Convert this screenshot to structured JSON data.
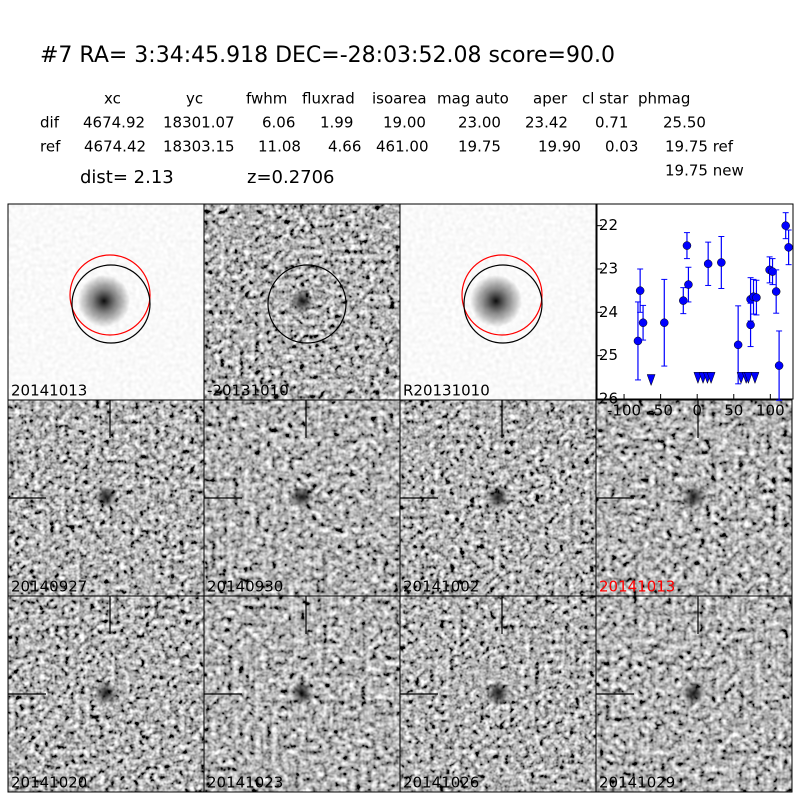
{
  "header": {
    "title": "#7   RA= 3:34:45.918 DEC=-28:03:52.08       score=90.0",
    "table": {
      "columns": [
        "xc",
        "yc",
        "fwhm",
        "fluxrad",
        "isoarea",
        "mag auto",
        "aper",
        "cl star",
        "phmag"
      ],
      "rows": [
        [
          "dif",
          "4674.92",
          "18301.07",
          "6.06",
          "1.99",
          "19.00",
          "23.00",
          "23.42",
          "0.71",
          "25.50"
        ],
        [
          "ref",
          "4674.42",
          "18303.15",
          "11.08",
          "4.66",
          "461.00",
          "19.75",
          "19.90",
          "0.03",
          "19.75 ref"
        ]
      ],
      "extra": "19.75 new"
    },
    "dist": "dist=  2.13",
    "z": "z=0.2706"
  },
  "stamps": [
    {
      "label": "20141013",
      "color": "#000000"
    },
    {
      "label": "-20131010",
      "color": "#000000"
    },
    {
      "label": "R20131010",
      "color": "#000000"
    },
    {
      "label": "20140927",
      "color": "#000000"
    },
    {
      "label": "20140930",
      "color": "#000000"
    },
    {
      "label": "20141002",
      "color": "#000000"
    },
    {
      "label": "20141013",
      "color": "#ff0000"
    },
    {
      "label": "20141020",
      "color": "#000000"
    },
    {
      "label": "20141023",
      "color": "#000000"
    },
    {
      "label": "20141026",
      "color": "#000000"
    },
    {
      "label": "20141029",
      "color": "#000000"
    }
  ],
  "chart_data": {
    "type": "scatter",
    "xlim": [
      -137,
      131
    ],
    "ylim": [
      26,
      21.5
    ],
    "xticks": [
      -100,
      -50,
      0,
      50,
      100
    ],
    "yticks": [
      22,
      23,
      24,
      25,
      26
    ],
    "series": [
      {
        "marker": "circle",
        "color": "#0000ff",
        "x": [
          -81,
          -78,
          -74,
          -45,
          -19,
          -14,
          -12,
          15,
          33,
          56,
          73,
          73,
          77,
          81,
          99,
          103,
          108,
          112,
          121,
          125
        ],
        "values": [
          24.66,
          23.5,
          24.24,
          24.24,
          23.73,
          22.46,
          23.36,
          22.88,
          22.85,
          24.75,
          23.7,
          24.29,
          23.64,
          23.66,
          23.02,
          23.06,
          23.52,
          25.23,
          22.0,
          22.5
        ],
        "errors": [
          0.9,
          0.5,
          0.4,
          1.0,
          0.3,
          0.3,
          0.4,
          0.5,
          0.6,
          0.9,
          0.5,
          0.5,
          0.4,
          0.4,
          0.3,
          0.3,
          0.5,
          0.8,
          0.3,
          0.4
        ]
      },
      {
        "marker": "down-triangle",
        "color": "#0000ff",
        "x": [
          -63,
          1,
          8,
          14,
          19,
          60,
          67,
          70,
          79
        ],
        "values": [
          25.55,
          25.5,
          25.5,
          25.5,
          25.5,
          25.5,
          25.5,
          25.5,
          25.5
        ]
      }
    ]
  }
}
